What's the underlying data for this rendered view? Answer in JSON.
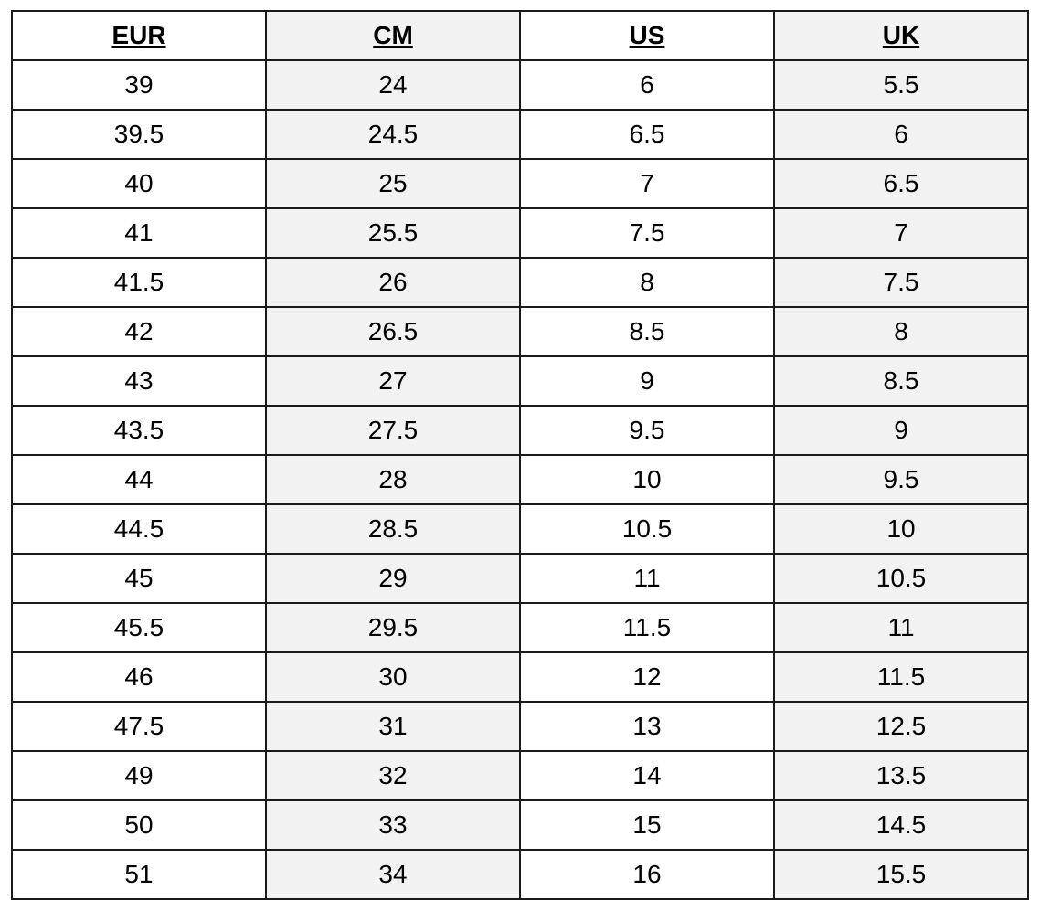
{
  "table": {
    "headers": [
      "EUR",
      "CM",
      "US",
      "UK"
    ],
    "rows": [
      [
        "39",
        "24",
        "6",
        "5.5"
      ],
      [
        "39.5",
        "24.5",
        "6.5",
        "6"
      ],
      [
        "40",
        "25",
        "7",
        "6.5"
      ],
      [
        "41",
        "25.5",
        "7.5",
        "7"
      ],
      [
        "41.5",
        "26",
        "8",
        "7.5"
      ],
      [
        "42",
        "26.5",
        "8.5",
        "8"
      ],
      [
        "43",
        "27",
        "9",
        "8.5"
      ],
      [
        "43.5",
        "27.5",
        "9.5",
        "9"
      ],
      [
        "44",
        "28",
        "10",
        "9.5"
      ],
      [
        "44.5",
        "28.5",
        "10.5",
        "10"
      ],
      [
        "45",
        "29",
        "11",
        "10.5"
      ],
      [
        "45.5",
        "29.5",
        "11.5",
        "11"
      ],
      [
        "46",
        "30",
        "12",
        "11.5"
      ],
      [
        "47.5",
        "31",
        "13",
        "12.5"
      ],
      [
        "49",
        "32",
        "14",
        "13.5"
      ],
      [
        "50",
        "33",
        "15",
        "14.5"
      ],
      [
        "51",
        "34",
        "16",
        "15.5"
      ]
    ]
  },
  "colors": {
    "border": "#1a1a1a",
    "shaded_column": "#f2f2f2",
    "plain_column": "#ffffff"
  }
}
